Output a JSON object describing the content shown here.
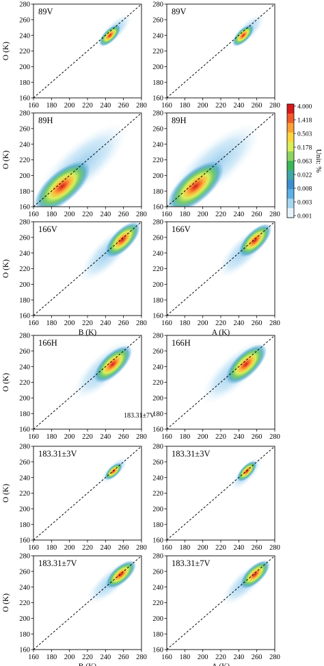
{
  "figure": {
    "colorbar": {
      "title": "Unit: %",
      "ticks": [
        "4.000",
        "1.418",
        "0.503",
        "0.178",
        "0.063",
        "0.022",
        "0.008",
        "0.003",
        "0.001"
      ],
      "colors": [
        "#d7191c",
        "#f05a2a",
        "#fca035",
        "#fdd53f",
        "#d9ef5a",
        "#8fd460",
        "#3cb65a",
        "#41a6a7",
        "#3d8fd0",
        "#5fb0e4",
        "#a7d6f2",
        "#e8f4fb"
      ]
    },
    "stray_label": "183.31±7V"
  },
  "chart_data": [
    {
      "type": "heatmap",
      "panel": "89V-B",
      "label": "89V",
      "xlabel": "",
      "ylabel": "O (K)",
      "xlim": [
        160,
        280
      ],
      "ylim": [
        160,
        280
      ],
      "xticks": [
        160,
        180,
        200,
        220,
        240,
        260,
        280
      ],
      "yticks": [
        160,
        180,
        200,
        220,
        240,
        260,
        280
      ],
      "one_to_one_line": true,
      "density_core": {
        "x": 245,
        "y": 240
      },
      "density_extent": [
        [
          232,
          225
        ],
        [
          268,
          267
        ]
      ]
    },
    {
      "type": "heatmap",
      "panel": "89V-A",
      "label": "89V",
      "xlabel": "",
      "ylabel": "",
      "xlim": [
        160,
        280
      ],
      "ylim": [
        160,
        280
      ],
      "xticks": [
        160,
        180,
        200,
        220,
        240,
        260,
        280
      ],
      "yticks": [
        160,
        180,
        200,
        220,
        240,
        260,
        280
      ],
      "one_to_one_line": true,
      "density_core": {
        "x": 245,
        "y": 240
      },
      "density_extent": [
        [
          232,
          225
        ],
        [
          268,
          267
        ]
      ]
    },
    {
      "type": "heatmap",
      "panel": "89H-B",
      "label": "89H",
      "xlabel": "",
      "ylabel": "O (K)",
      "xlim": [
        160,
        280
      ],
      "ylim": [
        160,
        280
      ],
      "xticks": [
        160,
        180,
        200,
        220,
        240,
        260,
        280
      ],
      "yticks": [
        160,
        180,
        200,
        220,
        240,
        260,
        280
      ],
      "one_to_one_line": true,
      "density_core": {
        "x": 192,
        "y": 186
      },
      "density_extent": [
        [
          165,
          165
        ],
        [
          262,
          263
        ]
      ]
    },
    {
      "type": "heatmap",
      "panel": "89H-A",
      "label": "89H",
      "xlabel": "",
      "ylabel": "",
      "xlim": [
        160,
        280
      ],
      "ylim": [
        160,
        280
      ],
      "xticks": [
        160,
        180,
        200,
        220,
        240,
        260,
        280
      ],
      "yticks": [
        160,
        180,
        200,
        220,
        240,
        260,
        280
      ],
      "one_to_one_line": true,
      "density_core": {
        "x": 192,
        "y": 186
      },
      "density_extent": [
        [
          165,
          165
        ],
        [
          262,
          263
        ]
      ]
    },
    {
      "type": "heatmap",
      "panel": "166V-B",
      "label": "166V",
      "xlabel": "B (K)",
      "ylabel": "O (K)",
      "xlim": [
        160,
        280
      ],
      "ylim": [
        160,
        280
      ],
      "xticks": [
        160,
        180,
        200,
        220,
        240,
        260,
        280
      ],
      "yticks": [
        160,
        180,
        200,
        220,
        240,
        260,
        280
      ],
      "one_to_one_line": true,
      "density_core": {
        "x": 259,
        "y": 257
      },
      "density_extent": [
        [
          213,
          205
        ],
        [
          272,
          275
        ]
      ]
    },
    {
      "type": "heatmap",
      "panel": "166V-A",
      "label": "166V",
      "xlabel": "A (K)",
      "ylabel": "",
      "xlim": [
        160,
        280
      ],
      "ylim": [
        160,
        280
      ],
      "xticks": [
        160,
        180,
        200,
        220,
        240,
        260,
        280
      ],
      "yticks": [
        160,
        180,
        200,
        220,
        240,
        260,
        280
      ],
      "one_to_one_line": true,
      "density_core": {
        "x": 258,
        "y": 256
      },
      "density_extent": [
        [
          218,
          210
        ],
        [
          273,
          275
        ]
      ]
    },
    {
      "type": "heatmap",
      "panel": "166H-B",
      "label": "166H",
      "xlabel": "",
      "ylabel": "O (K)",
      "xlim": [
        160,
        280
      ],
      "ylim": [
        160,
        280
      ],
      "xticks": [
        160,
        180,
        200,
        220,
        240,
        260,
        280
      ],
      "yticks": [
        160,
        180,
        200,
        220,
        240,
        260,
        280
      ],
      "one_to_one_line": true,
      "density_core": {
        "x": 248,
        "y": 243
      },
      "density_extent": [
        [
          205,
          200
        ],
        [
          270,
          272
        ]
      ]
    },
    {
      "type": "heatmap",
      "panel": "166H-A",
      "label": "166H",
      "xlabel": "",
      "ylabel": "",
      "xlim": [
        160,
        280
      ],
      "ylim": [
        160,
        280
      ],
      "xticks": [
        160,
        180,
        200,
        220,
        240,
        260,
        280
      ],
      "yticks": [
        160,
        180,
        200,
        220,
        240,
        260,
        280
      ],
      "one_to_one_line": true,
      "density_core": {
        "x": 248,
        "y": 243
      },
      "density_extent": [
        [
          200,
          195
        ],
        [
          270,
          272
        ]
      ]
    },
    {
      "type": "heatmap",
      "panel": "183.31±3V-B",
      "label": "183.31±3V",
      "xlabel": "",
      "ylabel": "O (K)",
      "xlim": [
        160,
        280
      ],
      "ylim": [
        160,
        280
      ],
      "xticks": [
        160,
        180,
        200,
        220,
        240,
        260,
        280
      ],
      "yticks": [
        160,
        180,
        200,
        220,
        240,
        260,
        280
      ],
      "one_to_one_line": true,
      "density_core": {
        "x": 249,
        "y": 248
      },
      "density_extent": [
        [
          235,
          233
        ],
        [
          265,
          266
        ]
      ]
    },
    {
      "type": "heatmap",
      "panel": "183.31±3V-A",
      "label": "183.31±3V",
      "xlabel": "",
      "ylabel": "",
      "xlim": [
        160,
        280
      ],
      "ylim": [
        160,
        280
      ],
      "xticks": [
        160,
        180,
        200,
        220,
        240,
        260,
        280
      ],
      "yticks": [
        160,
        180,
        200,
        220,
        240,
        260,
        280
      ],
      "one_to_one_line": true,
      "density_core": {
        "x": 249,
        "y": 248
      },
      "density_extent": [
        [
          232,
          225
        ],
        [
          265,
          266
        ]
      ]
    },
    {
      "type": "heatmap",
      "panel": "183.31±7V-B",
      "label": "183.31±7V",
      "xlabel": "B (K)",
      "ylabel": "O (K)",
      "xlim": [
        160,
        280
      ],
      "ylim": [
        160,
        280
      ],
      "xticks": [
        160,
        180,
        200,
        220,
        240,
        260,
        280
      ],
      "yticks": [
        160,
        180,
        200,
        220,
        240,
        260,
        280
      ],
      "one_to_one_line": true,
      "density_core": {
        "x": 257,
        "y": 256
      },
      "density_extent": [
        [
          220,
          220
        ],
        [
          272,
          273
        ]
      ]
    },
    {
      "type": "heatmap",
      "panel": "183.31±7V-A",
      "label": "183.31±7V",
      "xlabel": "A (K)",
      "ylabel": "",
      "xlim": [
        160,
        280
      ],
      "ylim": [
        160,
        280
      ],
      "xticks": [
        160,
        180,
        200,
        220,
        240,
        260,
        280
      ],
      "yticks": [
        160,
        180,
        200,
        220,
        240,
        260,
        280
      ],
      "one_to_one_line": true,
      "density_core": {
        "x": 258,
        "y": 256
      },
      "density_extent": [
        [
          222,
          218
        ],
        [
          272,
          273
        ]
      ]
    }
  ]
}
